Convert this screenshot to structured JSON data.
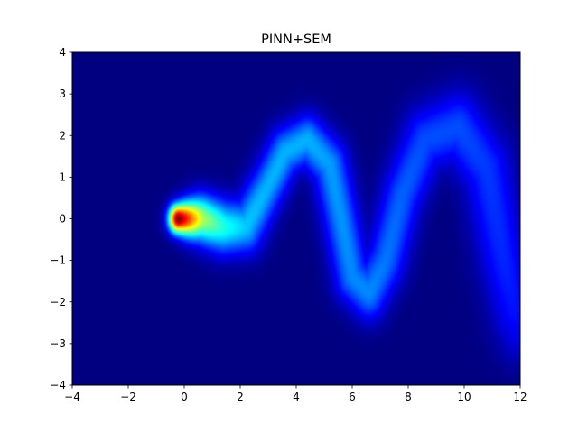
{
  "chart_data": {
    "type": "heatmap",
    "title": "PINN+SEM",
    "xlabel": "",
    "ylabel": "",
    "xlim": [
      -4,
      12
    ],
    "ylim": [
      -4,
      4
    ],
    "x_ticks": [
      -4,
      -2,
      0,
      2,
      4,
      6,
      8,
      10,
      12
    ],
    "y_ticks": [
      -4,
      -3,
      -2,
      -1,
      0,
      1,
      2,
      3,
      4
    ],
    "x_tick_labels": [
      "−4",
      "−2",
      "0",
      "2",
      "4",
      "6",
      "8",
      "10",
      "12"
    ],
    "y_tick_labels": [
      "−4",
      "−3",
      "−2",
      "−1",
      "0",
      "1",
      "2",
      "3",
      "4"
    ],
    "colormap": "jet",
    "background_color": "#00007f",
    "grid": false,
    "source": {
      "x": 0,
      "y": 0,
      "peak_value": 1.0
    },
    "plume_centerline": [
      {
        "x": -0.2,
        "y": 0.0
      },
      {
        "x": 0.6,
        "y": 0.0
      },
      {
        "x": 1.4,
        "y": -0.2
      },
      {
        "x": 2.2,
        "y": -0.2
      },
      {
        "x": 3.0,
        "y": 0.8
      },
      {
        "x": 3.6,
        "y": 1.6
      },
      {
        "x": 4.4,
        "y": 1.9
      },
      {
        "x": 5.2,
        "y": 1.3
      },
      {
        "x": 5.6,
        "y": 0.0
      },
      {
        "x": 6.0,
        "y": -1.4
      },
      {
        "x": 6.6,
        "y": -1.8
      },
      {
        "x": 7.2,
        "y": -1.0
      },
      {
        "x": 7.8,
        "y": 0.6
      },
      {
        "x": 8.6,
        "y": 1.9
      },
      {
        "x": 9.8,
        "y": 2.2
      },
      {
        "x": 10.8,
        "y": 1.2
      },
      {
        "x": 11.4,
        "y": -1.0
      },
      {
        "x": 11.8,
        "y": -2.2
      },
      {
        "x": 12.0,
        "y": -2.6
      }
    ],
    "plume_intensity": [
      1.0,
      0.55,
      0.4,
      0.32,
      0.3,
      0.3,
      0.3,
      0.28,
      0.27,
      0.26,
      0.26,
      0.24,
      0.22,
      0.2,
      0.2,
      0.18,
      0.16,
      0.14,
      0.12
    ],
    "plume_width": [
      0.25,
      0.4,
      0.45,
      0.45,
      0.42,
      0.42,
      0.42,
      0.45,
      0.45,
      0.45,
      0.45,
      0.48,
      0.5,
      0.55,
      0.6,
      0.62,
      0.6,
      0.6,
      0.6
    ]
  }
}
